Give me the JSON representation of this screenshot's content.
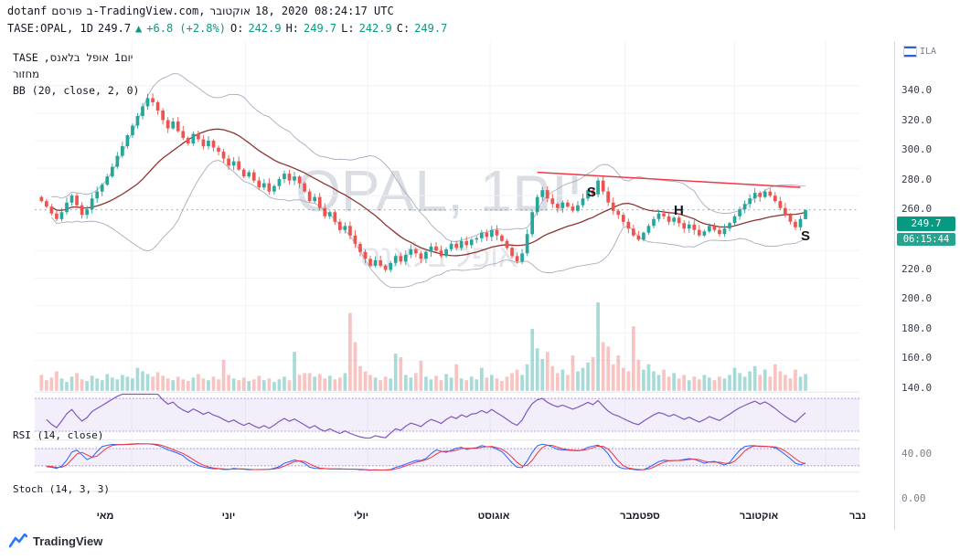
{
  "header": {
    "published_line": {
      "seg1": "dotanf",
      "seg2": "פורסם",
      "seg3": "ב-TradingView.com,",
      "seg4": "אוקטובר",
      "seg5": "18, 2020 08:24:17 UTC"
    },
    "quote_line": {
      "symbol": "TASE:OPAL, 1D",
      "last": "249.7",
      "arrow": "▲",
      "change": "+6.8 (+2.8%)",
      "o_label": "O:",
      "o": "242.9",
      "h_label": "H:",
      "h": "249.7",
      "l_label": "L:",
      "l": "242.9",
      "c_label": "C:",
      "c": "249.7"
    }
  },
  "legend": {
    "exchange": "TASE",
    "name": "אופל בלאנס,",
    "interval": "1יום",
    "volume": "מחזור",
    "bb": "BB (20, close, 2, 0)"
  },
  "watermark": {
    "line1": "OPAL, 1יום",
    "line2": "אופל בלאנס"
  },
  "annotations": {
    "s1": "S",
    "h": "H",
    "s2": "S"
  },
  "panels": {
    "rsi_label": "RSI (14, close)",
    "stoch_label": "Stoch (14, 3, 3)"
  },
  "axis": {
    "price_labels": [
      "340.0",
      "320.0",
      "300.0",
      "280.0",
      "260.0",
      "220.0",
      "200.0",
      "180.0",
      "160.0",
      "140.0"
    ],
    "price_values": [
      340,
      320,
      300,
      280,
      260,
      220,
      200,
      180,
      160,
      140
    ],
    "last_price_badge": "249.7",
    "countdown_badge": "06:15:44",
    "rsi_value_label": "40.00",
    "stoch_value_label": "0.00",
    "currency": "ILA",
    "months": [
      "מאי",
      "יוני",
      "יולי",
      "אוגוסט",
      "ספטמבר",
      "אוקטובר",
      "נבר"
    ]
  },
  "footer": {
    "brand": "TradingView"
  },
  "colors": {
    "up": "#26a69a",
    "down": "#ef5350",
    "accent_teal": "#089981",
    "bb_basis": "#8d342f",
    "bb_band": "#a9b0bd",
    "rsi": "#7e57c2",
    "stoch_k": "#2962ff",
    "stoch_d": "#f23645",
    "trendline": "#f23645",
    "band_fill": "#8e62ce"
  },
  "chart_data": {
    "type": "candlestick",
    "symbol": "TASE:OPAL",
    "interval": "1D",
    "title": "OPAL, 1יום — אופל בלאנס",
    "ylim": [
      140,
      345
    ],
    "ohlc_last": {
      "o": 242.9,
      "h": 249.7,
      "l": 242.9,
      "c": 249.7
    },
    "change": 6.8,
    "change_pct": 2.8,
    "overlays": [
      {
        "type": "bollinger",
        "length": 20,
        "source": "close",
        "mult": 2,
        "offset": 0
      }
    ],
    "indicators": [
      {
        "type": "rsi",
        "length": 14,
        "source": "close",
        "bands": [
          30,
          70
        ]
      },
      {
        "type": "stoch",
        "k": 14,
        "k_smooth": 3,
        "d": 3,
        "bands": [
          20,
          80
        ]
      }
    ],
    "trendline": {
      "x1_index": 98,
      "p1": 277,
      "x2_index": 150,
      "p2": 266
    },
    "xaxis_months": [
      "מאי",
      "יוני",
      "יולי",
      "אוגוסט",
      "ספטמבר",
      "אוקטובר",
      "נבר"
    ],
    "closes": [
      256,
      252,
      247,
      243,
      248,
      255,
      260,
      253,
      246,
      250,
      258,
      263,
      268,
      274,
      281,
      289,
      296,
      304,
      311,
      318,
      325,
      331,
      328,
      322,
      315,
      309,
      314,
      307,
      302,
      298,
      305,
      301,
      296,
      300,
      295,
      292,
      287,
      282,
      285,
      279,
      274,
      277,
      271,
      266,
      269,
      263,
      267,
      272,
      276,
      271,
      274,
      269,
      263,
      256,
      259,
      251,
      245,
      248,
      241,
      235,
      238,
      231,
      225,
      219,
      214,
      209,
      213,
      209,
      206,
      211,
      216,
      212,
      217,
      221,
      218,
      214,
      219,
      223,
      220,
      216,
      221,
      225,
      222,
      227,
      224,
      228,
      229,
      233,
      230,
      235,
      231,
      227,
      222,
      216,
      212,
      218,
      232,
      248,
      259,
      264,
      258,
      254,
      251,
      255,
      252,
      249,
      253,
      258,
      264,
      261,
      271,
      263,
      255,
      249,
      246,
      241,
      236,
      231,
      228,
      233,
      238,
      243,
      247,
      245,
      241,
      244,
      240,
      236,
      239,
      235,
      231,
      234,
      238,
      235,
      232,
      236,
      240,
      245,
      250,
      254,
      258,
      262,
      259,
      263,
      260,
      256,
      251,
      246,
      241,
      237,
      243,
      249.7
    ],
    "volumes": [
      18,
      12,
      15,
      22,
      14,
      10,
      16,
      20,
      13,
      11,
      17,
      14,
      12,
      19,
      15,
      13,
      18,
      16,
      14,
      26,
      22,
      19,
      16,
      21,
      17,
      14,
      12,
      16,
      13,
      11,
      15,
      19,
      14,
      12,
      16,
      13,
      35,
      18,
      14,
      12,
      15,
      11,
      13,
      17,
      12,
      14,
      10,
      13,
      16,
      12,
      44,
      18,
      20,
      20,
      16,
      19,
      14,
      17,
      13,
      15,
      20,
      88,
      55,
      28,
      22,
      18,
      15,
      12,
      16,
      14,
      42,
      38,
      18,
      15,
      20,
      34,
      16,
      13,
      17,
      12,
      19,
      15,
      30,
      14,
      12,
      16,
      13,
      26,
      15,
      18,
      14,
      11,
      16,
      20,
      24,
      18,
      30,
      70,
      48,
      36,
      44,
      28,
      20,
      24,
      18,
      40,
      22,
      26,
      32,
      38,
      100,
      55,
      50,
      30,
      40,
      26,
      22,
      73,
      35,
      24,
      30,
      22,
      18,
      24,
      16,
      20,
      14,
      18,
      12,
      16,
      13,
      18,
      15,
      12,
      16,
      14,
      18,
      26,
      20,
      16,
      22,
      28,
      18,
      24,
      16,
      30,
      22,
      18,
      14,
      24,
      16,
      19
    ]
  }
}
